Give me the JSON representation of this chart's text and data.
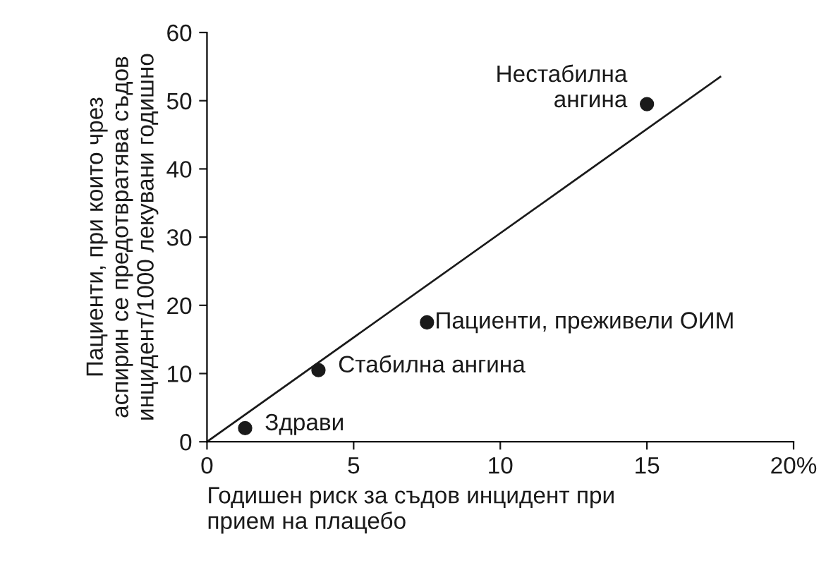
{
  "chart_data": {
    "type": "scatter",
    "xlabel": "Годишен риск за съдов инцидент при\nприем на плацебо",
    "ylabel": "Пациенти, при които чрез\nаспирин се предотвратява съдов\nинцидент/1000 лекувани годишно",
    "series": [
      {
        "color": "#1a1a1a",
        "marker": "circle",
        "x": [
          1.3,
          3.8,
          7.5,
          15
        ],
        "values": [
          2,
          10.5,
          17.5,
          49.5
        ]
      },
      {
        "type": "line",
        "color": "#1a1a1a",
        "marker": "none",
        "line_style": "solid",
        "x": [
          0,
          17.5
        ],
        "values": [
          0,
          53.5
        ]
      }
    ],
    "annotations": [
      {
        "text": "Здрави",
        "x": 1.3,
        "y": 2
      },
      {
        "text": "Стабилна ангина",
        "x": 3.8,
        "y": 10.5
      },
      {
        "text": "Пациенти, преживели ОИМ",
        "x": 7.5,
        "y": 17.5
      },
      {
        "text": "Нестабилна\nангина",
        "x": 15,
        "y": 49.5
      }
    ],
    "xlim": [
      0,
      20
    ],
    "xticks": [
      0,
      5,
      10,
      15,
      {
        "value": 20,
        "label": "20%"
      }
    ],
    "ylim": [
      0,
      60
    ],
    "yticks": [
      0,
      10,
      20,
      30,
      40,
      50,
      60
    ],
    "grid": false,
    "legend": false
  }
}
